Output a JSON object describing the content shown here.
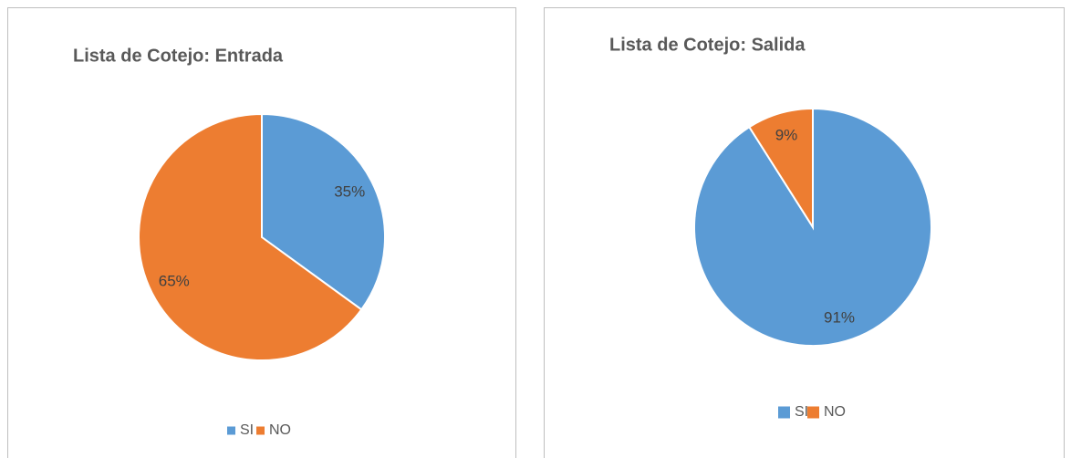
{
  "chart_data": [
    {
      "type": "pie",
      "title": "Lista de Cotejo: Entrada",
      "categories": [
        "SI",
        "NO"
      ],
      "values": [
        35,
        65
      ],
      "value_labels": [
        "35%",
        "65%"
      ],
      "colors": [
        "#5b9bd5",
        "#ed7d31"
      ],
      "legend": "bottom"
    },
    {
      "type": "pie",
      "title": "Lista de Cotejo: Salida",
      "categories": [
        "SI",
        "NO"
      ],
      "values": [
        91,
        9
      ],
      "value_labels": [
        "91%",
        "9%"
      ],
      "colors": [
        "#5b9bd5",
        "#ed7d31"
      ],
      "legend": "bottom"
    }
  ]
}
